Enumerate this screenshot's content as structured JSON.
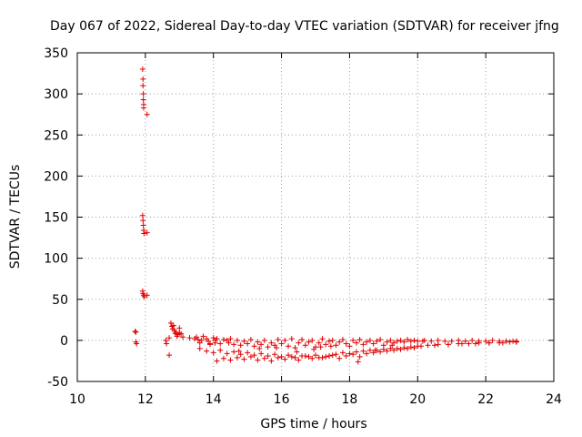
{
  "chart_data": {
    "type": "scatter",
    "title": "Day 067 of 2022, Sidereal Day-to-day VTEC variation (SDTVAR) for receiver jfng",
    "xlabel": "GPS time / hours",
    "ylabel": "SDTVAR / TECUs",
    "xlim": [
      10,
      24
    ],
    "ylim": [
      -50,
      350
    ],
    "xticks": [
      10,
      12,
      14,
      16,
      18,
      20,
      22,
      24
    ],
    "xtick_labels": [
      "10",
      "12",
      "14",
      "16",
      "18",
      "20",
      "22",
      "24"
    ],
    "yticks": [
      -50,
      0,
      50,
      100,
      150,
      200,
      250,
      300,
      350
    ],
    "ytick_labels": [
      "-50",
      "0",
      "50",
      "100",
      "150",
      "200",
      "250",
      "300",
      "350"
    ],
    "grid": true,
    "marker": "+",
    "series_color": "#e00000",
    "series": [
      {
        "name": "SDTVAR",
        "x": [
          11.7,
          11.72,
          11.72,
          11.74,
          11.92,
          11.93,
          11.93,
          11.94,
          11.94,
          11.95,
          11.95,
          12.05,
          11.92,
          11.93,
          11.94,
          11.95,
          11.96,
          12.05,
          11.92,
          11.93,
          11.95,
          11.97,
          12.05,
          12.6,
          12.62,
          12.7,
          12.75,
          12.78,
          12.8,
          12.83,
          12.85,
          12.88,
          12.9,
          12.93,
          12.95,
          13.0,
          13.05,
          13.1,
          13.3,
          13.45,
          13.5,
          13.55,
          13.6,
          13.65,
          13.7,
          13.8,
          13.85,
          13.9,
          14.0,
          14.05,
          14.1,
          14.2,
          14.3,
          14.4,
          14.45,
          14.5,
          14.6,
          14.7,
          14.8,
          14.9,
          15.0,
          15.1,
          15.2,
          15.3,
          15.4,
          15.5,
          15.6,
          15.7,
          15.8,
          15.9,
          16.0,
          16.1,
          16.2,
          16.3,
          16.4,
          16.5,
          16.6,
          16.7,
          16.8,
          16.9,
          17.0,
          17.1,
          17.2,
          17.3,
          17.4,
          17.5,
          17.6,
          17.7,
          17.8,
          17.9,
          18.0,
          18.1,
          18.2,
          18.3,
          18.4,
          18.5,
          18.6,
          18.7,
          18.8,
          18.9,
          19.0,
          19.1,
          19.2,
          19.3,
          19.4,
          19.5,
          19.6,
          19.7,
          19.8,
          19.9,
          20.0,
          20.2,
          20.4,
          20.6,
          20.8,
          21.0,
          21.2,
          21.4,
          21.6,
          21.8,
          22.0,
          22.2,
          22.4,
          22.6,
          22.8,
          22.9,
          13.6,
          13.8,
          14.0,
          14.2,
          14.4,
          14.6,
          14.8,
          15.0,
          15.2,
          15.4,
          15.6,
          15.8,
          16.0,
          16.2,
          16.4,
          16.6,
          16.8,
          17.0,
          17.2,
          17.4,
          17.6,
          17.8,
          18.0,
          18.2,
          18.4,
          18.6,
          18.8,
          19.0,
          19.2,
          19.4,
          19.6,
          19.8,
          20.0,
          20.3,
          20.6,
          20.9,
          21.2,
          21.5,
          21.8,
          22.1,
          22.4,
          22.7,
          22.9,
          14.1,
          14.3,
          14.5,
          14.7,
          14.9,
          15.1,
          15.3,
          15.5,
          15.7,
          15.9,
          16.1,
          16.3,
          16.5,
          16.7,
          16.9,
          17.1,
          17.3,
          17.5,
          17.7,
          17.9,
          18.1,
          18.3,
          18.5,
          18.7,
          18.9,
          19.1,
          19.3,
          19.5,
          19.7,
          19.9,
          20.1,
          20.5,
          20.9,
          21.3,
          21.7,
          22.1,
          22.5,
          22.9,
          13.9,
          14.05,
          18.25,
          15.35,
          16.45,
          17.15,
          18.75,
          19.25,
          15.85,
          16.95,
          17.45,
          14.75,
          20.15,
          12.7,
          13.0
        ],
        "y": [
          11,
          10,
          -2,
          -4,
          330,
          318,
          310,
          300,
          293,
          287,
          283,
          275,
          152,
          146,
          140,
          134,
          130,
          131,
          60,
          57,
          55,
          53,
          55,
          0,
          -4,
          3,
          21,
          17,
          14,
          18,
          12,
          8,
          10,
          5,
          7,
          9,
          8,
          4,
          3,
          2,
          4,
          1,
          -3,
          0,
          5,
          2,
          -1,
          -4,
          3,
          0,
          2,
          -4,
          1,
          0,
          -3,
          2,
          -5,
          0,
          -6,
          -1,
          -4,
          1,
          -7,
          -2,
          -5,
          0,
          -8,
          -3,
          -6,
          1,
          -4,
          0,
          -7,
          2,
          -9,
          -3,
          1,
          -6,
          -2,
          0,
          -8,
          -3,
          2,
          -5,
          -1,
          0,
          -6,
          -2,
          1,
          -4,
          -7,
          0,
          -3,
          1,
          -5,
          -2,
          0,
          -4,
          -1,
          1,
          -6,
          -2,
          0,
          -3,
          -1,
          0,
          -2,
          1,
          -1,
          0,
          -1,
          0,
          -1,
          0,
          -1,
          -1,
          0,
          -1,
          0,
          -1,
          -1,
          0,
          -1,
          -1,
          -1,
          -1,
          -10,
          -13,
          -15,
          -12,
          -16,
          -14,
          -17,
          -15,
          -18,
          -16,
          -19,
          -17,
          -20,
          -18,
          -21,
          -19,
          -20,
          -18,
          -21,
          -19,
          -17,
          -15,
          -16,
          -14,
          -13,
          -12,
          -12,
          -11,
          -10,
          -10,
          -9,
          -8,
          -7,
          -6,
          -5,
          -5,
          -4,
          -4,
          -3,
          -3,
          -3,
          -2,
          -2,
          -25,
          -22,
          -24,
          -21,
          -23,
          -20,
          -24,
          -22,
          -25,
          -21,
          -23,
          -20,
          -24,
          -19,
          -22,
          -21,
          -20,
          -18,
          -22,
          -19,
          -17,
          -20,
          -16,
          -15,
          -14,
          -13,
          -12,
          -11,
          -10,
          -9,
          -7,
          -6,
          -5,
          -4,
          -4,
          -3,
          -3,
          -2,
          -5,
          -3,
          -26,
          -10,
          -14,
          -8,
          -12,
          -6,
          -9,
          -11,
          -7,
          -13,
          -1,
          -18,
          15
        ]
      }
    ]
  }
}
